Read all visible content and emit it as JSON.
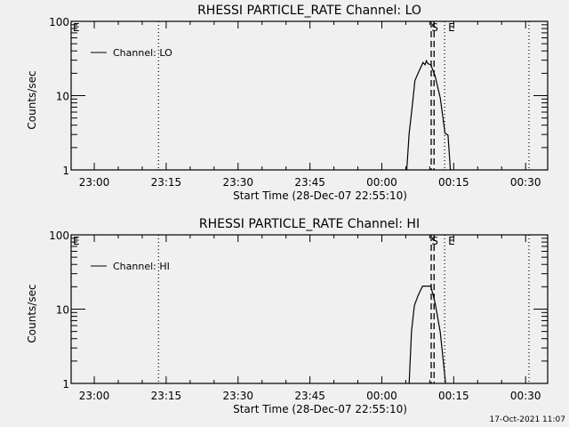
{
  "chart_data": [
    {
      "type": "line",
      "title": "RHESSI PARTICLE_RATE Channel: LO",
      "xlabel": "Start Time (28-Dec-07 22:55:10)",
      "ylabel": "Counts/sec",
      "x_units": "minutes since 23:00",
      "xlim": [
        -4.83,
        94.6
      ],
      "ylim": [
        1,
        100
      ],
      "yscale": "log",
      "xtick_values": [
        0,
        15,
        30,
        45,
        60,
        75,
        90
      ],
      "xtick_labels": [
        "23:00",
        "23:15",
        "23:30",
        "23:45",
        "00:00",
        "00:15",
        "00:30"
      ],
      "ytick_values": [
        1,
        10,
        100
      ],
      "ytick_labels": [
        "1",
        "10",
        "100"
      ],
      "legend": {
        "label": "Channel: LO",
        "placement": "top-left"
      },
      "series": [
        {
          "name": "Channel: LO",
          "x": [
            65.2,
            65.7,
            66.4,
            66.9,
            67.7,
            68.6,
            69.0,
            69.3,
            69.6,
            70.2,
            71.1,
            72.2,
            73.2,
            73.8,
            74.3
          ],
          "y": [
            1,
            3.1,
            7.8,
            16,
            21,
            28,
            26,
            29.5,
            27,
            26,
            18.6,
            9.3,
            3.1,
            2.95,
            1
          ]
        }
      ],
      "markers": [
        {
          "style": "dotted",
          "x": 13.4,
          "label": ""
        },
        {
          "style": "dotted",
          "x": 73.1,
          "label": "E"
        },
        {
          "style": "dotted",
          "x": 90.7,
          "label": ""
        },
        {
          "style": "dashed",
          "x": 70.3,
          "label": ""
        },
        {
          "style": "dashed",
          "x": 70.9,
          "label": "S"
        }
      ],
      "left_label": "E"
    },
    {
      "type": "line",
      "title": "RHESSI PARTICLE_RATE Channel: HI",
      "xlabel": "Start Time (28-Dec-07 22:55:10)",
      "ylabel": "Counts/sec",
      "x_units": "minutes since 23:00",
      "xlim": [
        -4.83,
        94.6
      ],
      "ylim": [
        1,
        100
      ],
      "yscale": "log",
      "xtick_values": [
        0,
        15,
        30,
        45,
        60,
        75,
        90
      ],
      "xtick_labels": [
        "23:00",
        "23:15",
        "23:30",
        "23:45",
        "00:00",
        "00:15",
        "00:30"
      ],
      "ytick_values": [
        1,
        10,
        100
      ],
      "ytick_labels": [
        "1",
        "10",
        "100"
      ],
      "legend": {
        "label": "Channel: HI",
        "placement": "top-left"
      },
      "series": [
        {
          "name": "Channel: HI",
          "x": [
            65.7,
            66.2,
            66.8,
            67.6,
            68.5,
            69.4,
            70.2,
            71.1,
            72.2,
            73.3
          ],
          "y": [
            1,
            5.1,
            11.2,
            15.5,
            20.4,
            20.4,
            20.4,
            12.3,
            4.9,
            1
          ]
        }
      ],
      "markers": [
        {
          "style": "dotted",
          "x": 13.4,
          "label": ""
        },
        {
          "style": "dotted",
          "x": 73.1,
          "label": "E"
        },
        {
          "style": "dotted",
          "x": 90.7,
          "label": ""
        },
        {
          "style": "dashed",
          "x": 70.3,
          "label": ""
        },
        {
          "style": "dashed",
          "x": 70.9,
          "label": "S"
        }
      ],
      "left_label": "E"
    }
  ],
  "footer": {
    "timestamp": "17-Oct-2021 11:07"
  }
}
